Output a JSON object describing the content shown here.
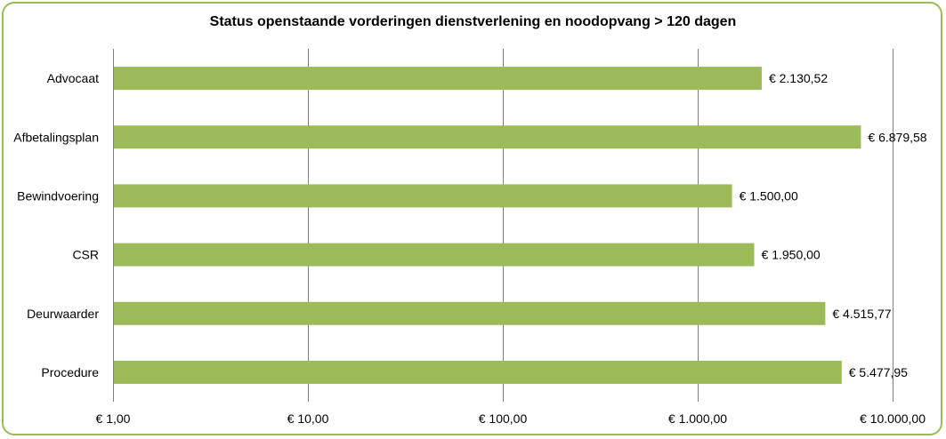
{
  "chart_data": {
    "type": "bar",
    "orientation": "horizontal",
    "title": "Status openstaande vorderingen dienstverlening en noodopvang > 120 dagen",
    "categories": [
      "Advocaat",
      "Afbetalingsplan",
      "Bewindvoering",
      "CSR",
      "Deurwaarder",
      "Procedure"
    ],
    "values": [
      2130.52,
      6879.58,
      1500.0,
      1950.0,
      4515.77,
      5477.95
    ],
    "data_labels": [
      "€ 2.130,52",
      "€ 6.879,58",
      "€ 1.500,00",
      "€ 1.950,00",
      "€ 4.515,77",
      "€ 5.477,95"
    ],
    "x_scale": "log",
    "xlim": [
      1,
      10000
    ],
    "x_ticks": [
      1,
      10,
      100,
      1000,
      10000
    ],
    "x_tick_labels": [
      "€ 1,00",
      "€ 10,00",
      "€ 100,00",
      "€ 1.000,00",
      "€ 10.000,00"
    ],
    "grid": "vertical",
    "legend": "none",
    "colors": {
      "bar": "#9BBB59",
      "frame": "#9BBB59",
      "grid": "#7F7F7F"
    }
  }
}
